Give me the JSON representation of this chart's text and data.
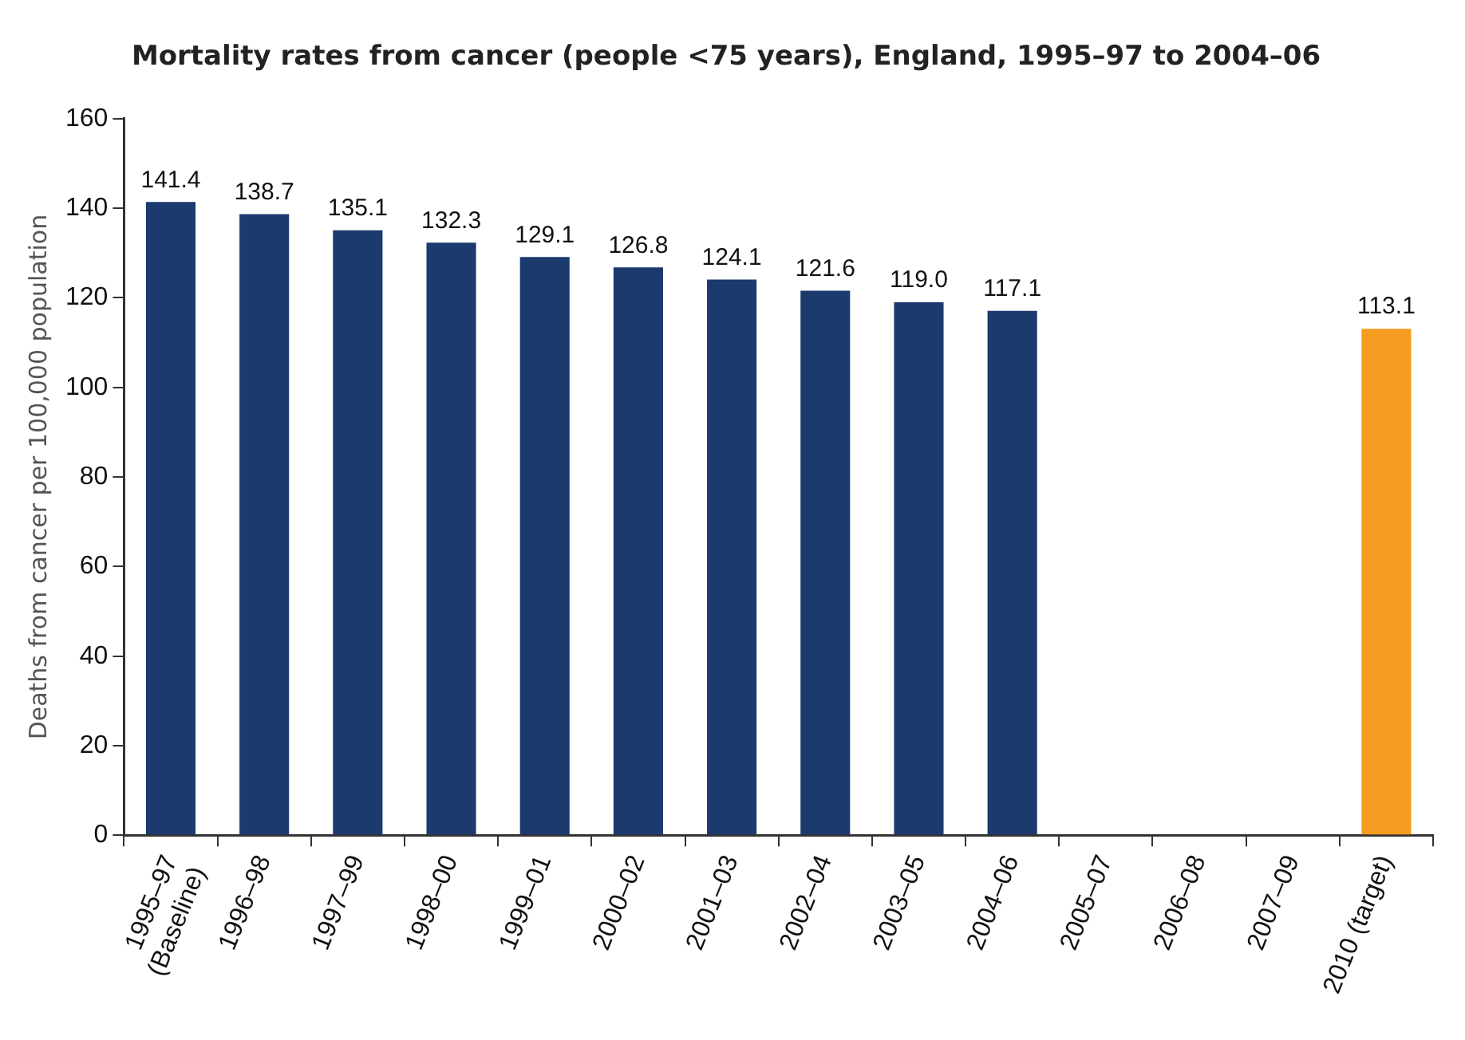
{
  "chart_data": {
    "type": "bar",
    "title": "Mortality rates from cancer (people <75 years), England, 1995–97 to 2004–06",
    "ylabel": "Deaths from cancer per 100,000 population",
    "categories": [
      "1995–97\n(Baseline)",
      "1996–98",
      "1997–99",
      "1998–00",
      "1999–01",
      "2000–02",
      "2001–03",
      "2002–04",
      "2003–05",
      "2004–06",
      "2005–07",
      "2006–08",
      "2007–09",
      "2010 (target)"
    ],
    "values": [
      141.4,
      138.7,
      135.1,
      132.3,
      129.1,
      126.8,
      124.1,
      121.6,
      119.0,
      117.1,
      null,
      null,
      null,
      113.1
    ],
    "value_labels": [
      "141.4",
      "138.7",
      "135.1",
      "132.3",
      "129.1",
      "126.8",
      "124.1",
      "121.6",
      "119.0",
      "117.1",
      null,
      null,
      null,
      "113.1"
    ],
    "colors": [
      "#1b3a6e",
      "#1b3a6e",
      "#1b3a6e",
      "#1b3a6e",
      "#1b3a6e",
      "#1b3a6e",
      "#1b3a6e",
      "#1b3a6e",
      "#1b3a6e",
      "#1b3a6e",
      "#1b3a6e",
      "#1b3a6e",
      "#1b3a6e",
      "#f39c1f"
    ],
    "ylim": [
      0,
      160
    ],
    "yticks": [
      0,
      20,
      40,
      60,
      80,
      100,
      120,
      140,
      160
    ],
    "grid": false,
    "legend": false
  }
}
